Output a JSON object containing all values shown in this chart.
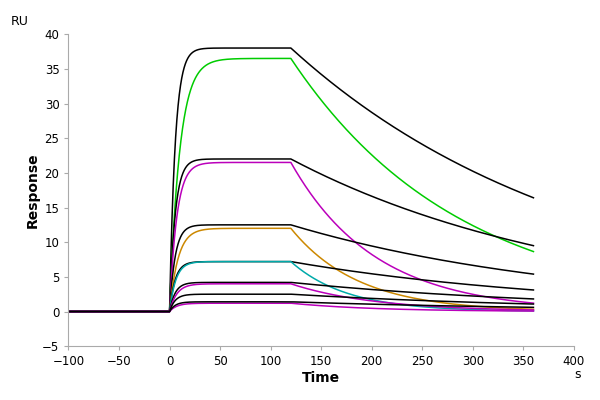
{
  "title": "",
  "xlabel": "Time",
  "ylabel": "Response",
  "xlabel_right": "s",
  "ylabel_top": "RU",
  "xlim": [
    -100,
    400
  ],
  "ylim": [
    -5,
    40
  ],
  "xticks": [
    -100,
    -50,
    0,
    50,
    100,
    150,
    200,
    250,
    300,
    350,
    400
  ],
  "yticks": [
    -5,
    0,
    5,
    10,
    15,
    20,
    25,
    30,
    35,
    40
  ],
  "t_baseline_start": -100,
  "t_assoc_start": 0,
  "t_assoc_end": 120,
  "t_dissoc_end": 360,
  "curves": [
    {
      "color": "#000000",
      "Rmax": 38.0,
      "ka": 0.18,
      "kd": 0.0035
    },
    {
      "color": "#00cc00",
      "Rmax": 36.5,
      "ka": 0.1,
      "kd": 0.006
    },
    {
      "color": "#000000",
      "Rmax": 22.0,
      "ka": 0.18,
      "kd": 0.0035
    },
    {
      "color": "#bb00bb",
      "Rmax": 21.5,
      "ka": 0.14,
      "kd": 0.012
    },
    {
      "color": "#000000",
      "Rmax": 12.5,
      "ka": 0.18,
      "kd": 0.0035
    },
    {
      "color": "#cc8800",
      "Rmax": 12.0,
      "ka": 0.12,
      "kd": 0.015
    },
    {
      "color": "#000000",
      "Rmax": 7.2,
      "ka": 0.18,
      "kd": 0.0035
    },
    {
      "color": "#00aaaa",
      "Rmax": 7.2,
      "ka": 0.16,
      "kd": 0.018
    },
    {
      "color": "#000000",
      "Rmax": 4.2,
      "ka": 0.18,
      "kd": 0.0035
    },
    {
      "color": "#bb00bb",
      "Rmax": 4.0,
      "ka": 0.14,
      "kd": 0.012
    },
    {
      "color": "#000000",
      "Rmax": 2.5,
      "ka": 0.18,
      "kd": 0.0035
    },
    {
      "color": "#bb00bb",
      "Rmax": 1.2,
      "ka": 0.14,
      "kd": 0.012
    },
    {
      "color": "#000000",
      "Rmax": 1.4,
      "ka": 0.18,
      "kd": 0.0035
    }
  ],
  "linewidth": 1.1,
  "background_color": "#ffffff",
  "figsize": [
    6.0,
    4.0
  ],
  "dpi": 100
}
